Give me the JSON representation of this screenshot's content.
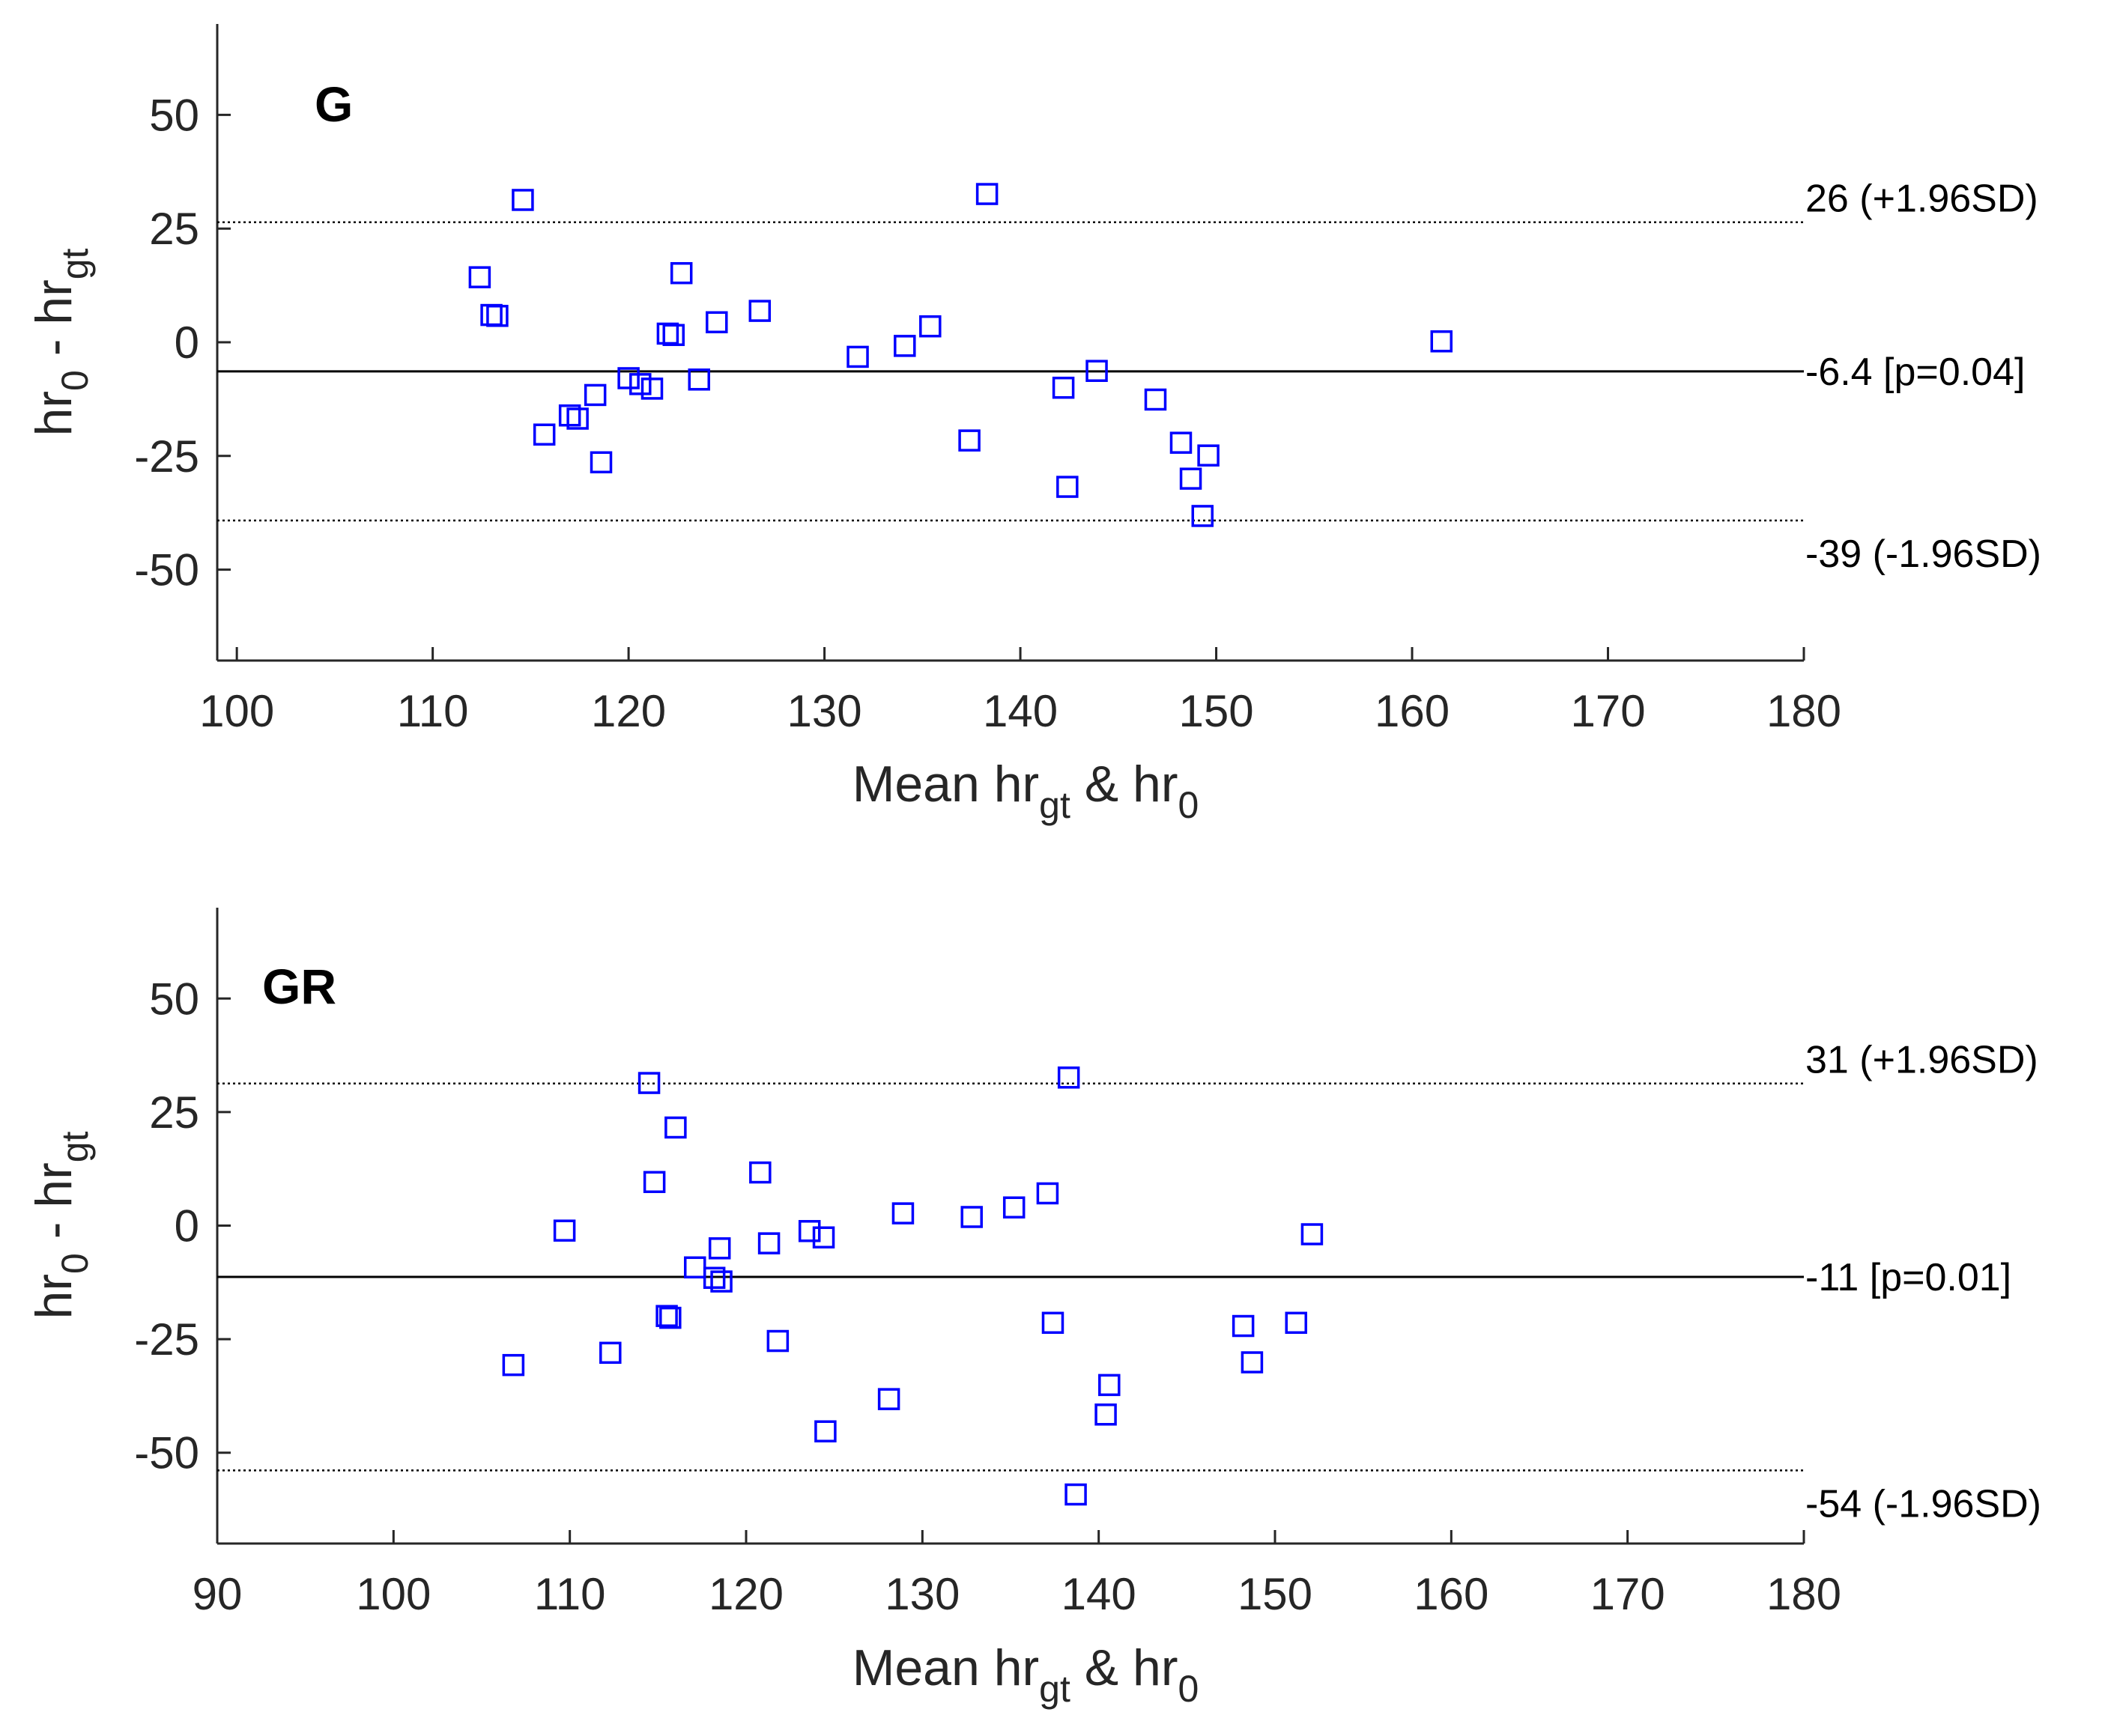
{
  "colors": {
    "marker": "#0000ff",
    "axis": "#262626",
    "lines": "#000000"
  },
  "chart_data": [
    {
      "type": "scatter",
      "panel_label": "G",
      "xlabel": {
        "base": "Mean hr",
        "sub1": "gt",
        "mid": " & hr",
        "sub2": "0"
      },
      "ylabel": {
        "base1": "hr",
        "sub1": "0",
        "mid": " - hr",
        "sub2": "gt"
      },
      "xlim": [
        99,
        180
      ],
      "ylim": [
        -70,
        70
      ],
      "xticks": [
        100,
        110,
        120,
        130,
        140,
        150,
        160,
        170,
        180
      ],
      "yticks": [
        -50,
        -25,
        0,
        25,
        50
      ],
      "mean": -6.4,
      "upper_loa": 26.4,
      "lower_loa": -39.2,
      "mean_label": "-6.4 [p=0.04]",
      "upper_label": "26 (+1.96SD)",
      "lower_label": "-39 (-1.96SD)",
      "points": [
        [
          114.6,
          31.3
        ],
        [
          138.3,
          32.6
        ],
        [
          112.4,
          14.3
        ],
        [
          113.0,
          6.0
        ],
        [
          113.3,
          5.8
        ],
        [
          122.7,
          15.2
        ],
        [
          126.7,
          6.9
        ],
        [
          124.5,
          4.4
        ],
        [
          135.4,
          3.5
        ],
        [
          122.0,
          1.9
        ],
        [
          122.3,
          1.6
        ],
        [
          161.5,
          0.2
        ],
        [
          134.1,
          -0.8
        ],
        [
          131.7,
          -3.2
        ],
        [
          143.9,
          -6.3
        ],
        [
          120.0,
          -7.9
        ],
        [
          120.6,
          -9.2
        ],
        [
          123.6,
          -8.2
        ],
        [
          121.2,
          -10.2
        ],
        [
          142.2,
          -10.0
        ],
        [
          118.3,
          -11.6
        ],
        [
          146.9,
          -12.6
        ],
        [
          117.0,
          -16.1
        ],
        [
          117.4,
          -16.8
        ],
        [
          115.7,
          -20.3
        ],
        [
          137.4,
          -21.6
        ],
        [
          148.2,
          -22.1
        ],
        [
          149.6,
          -24.9
        ],
        [
          118.6,
          -26.4
        ],
        [
          148.7,
          -30.0
        ],
        [
          142.4,
          -31.8
        ],
        [
          149.3,
          -38.2
        ]
      ]
    },
    {
      "type": "scatter",
      "panel_label": "GR",
      "xlabel": {
        "base": "Mean hr",
        "sub1": "gt",
        "mid": " & hr",
        "sub2": "0"
      },
      "ylabel": {
        "base1": "hr",
        "sub1": "0",
        "mid": " - hr",
        "sub2": "gt"
      },
      "xlim": [
        90,
        180
      ],
      "ylim": [
        -70,
        70
      ],
      "xticks": [
        90,
        100,
        110,
        120,
        130,
        140,
        150,
        160,
        170,
        180
      ],
      "yticks": [
        -50,
        -25,
        0,
        25,
        50
      ],
      "mean": -11.3,
      "upper_loa": 31.3,
      "lower_loa": -53.9,
      "mean_label": "-11 [p=0.01]",
      "upper_label": "31 (+1.96SD)",
      "lower_label": "-54 (-1.96SD)",
      "points": [
        [
          114.5,
          31.4
        ],
        [
          138.3,
          32.6
        ],
        [
          116.0,
          21.6
        ],
        [
          120.8,
          11.7
        ],
        [
          114.8,
          9.6
        ],
        [
          137.1,
          7.1
        ],
        [
          135.2,
          4.0
        ],
        [
          128.9,
          2.7
        ],
        [
          132.8,
          1.9
        ],
        [
          109.7,
          -1.1
        ],
        [
          123.6,
          -1.2
        ],
        [
          124.4,
          -2.6
        ],
        [
          152.1,
          -1.9
        ],
        [
          121.3,
          -3.9
        ],
        [
          118.5,
          -5.0
        ],
        [
          117.1,
          -9.2
        ],
        [
          118.2,
          -11.5
        ],
        [
          118.6,
          -12.3
        ],
        [
          115.5,
          -19.9
        ],
        [
          115.7,
          -20.3
        ],
        [
          137.4,
          -21.4
        ],
        [
          148.2,
          -22.1
        ],
        [
          151.2,
          -21.4
        ],
        [
          121.8,
          -25.4
        ],
        [
          112.3,
          -28.0
        ],
        [
          106.8,
          -30.7
        ],
        [
          148.7,
          -30.1
        ],
        [
          140.6,
          -35.1
        ],
        [
          128.1,
          -38.2
        ],
        [
          140.4,
          -41.6
        ],
        [
          124.5,
          -45.3
        ],
        [
          138.7,
          -59.2
        ]
      ]
    }
  ]
}
